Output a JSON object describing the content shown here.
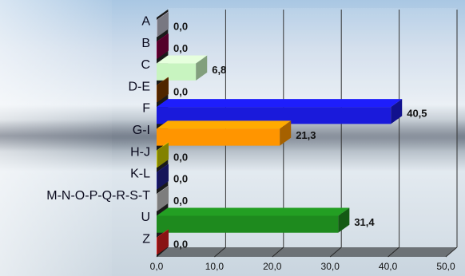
{
  "chart_data": {
    "type": "bar",
    "orientation": "horizontal",
    "categories": [
      "A",
      "B",
      "C",
      "D-E",
      "F",
      "G-I",
      "H-J",
      "K-L",
      "M-N-O-P-Q-R-S-T",
      "U",
      "Z"
    ],
    "values": [
      0.0,
      0.0,
      6.8,
      0.0,
      40.5,
      21.3,
      0.0,
      0.0,
      0.0,
      31.4,
      0.0
    ],
    "value_labels": [
      "0,0",
      "0,0",
      "6,8",
      "0,0",
      "40,5",
      "21,3",
      "0,0",
      "0,0",
      "0,0",
      "31,4",
      "0,0"
    ],
    "colors": [
      "#b8b8c8",
      "#800040",
      "#c8f4c0",
      "#7a3a00",
      "#1a1adb",
      "#ff9500",
      "#c8c800",
      "#20208a",
      "#c0c0c0",
      "#1e8a1e",
      "#d21e1e"
    ],
    "xlim": [
      0,
      50
    ],
    "x_ticks": [
      "0,0",
      "10,0",
      "20,0",
      "30,0",
      "40,0",
      "50,0"
    ],
    "x_tick_values": [
      0,
      10,
      20,
      30,
      40,
      50
    ],
    "grid": true,
    "style": "3d"
  }
}
